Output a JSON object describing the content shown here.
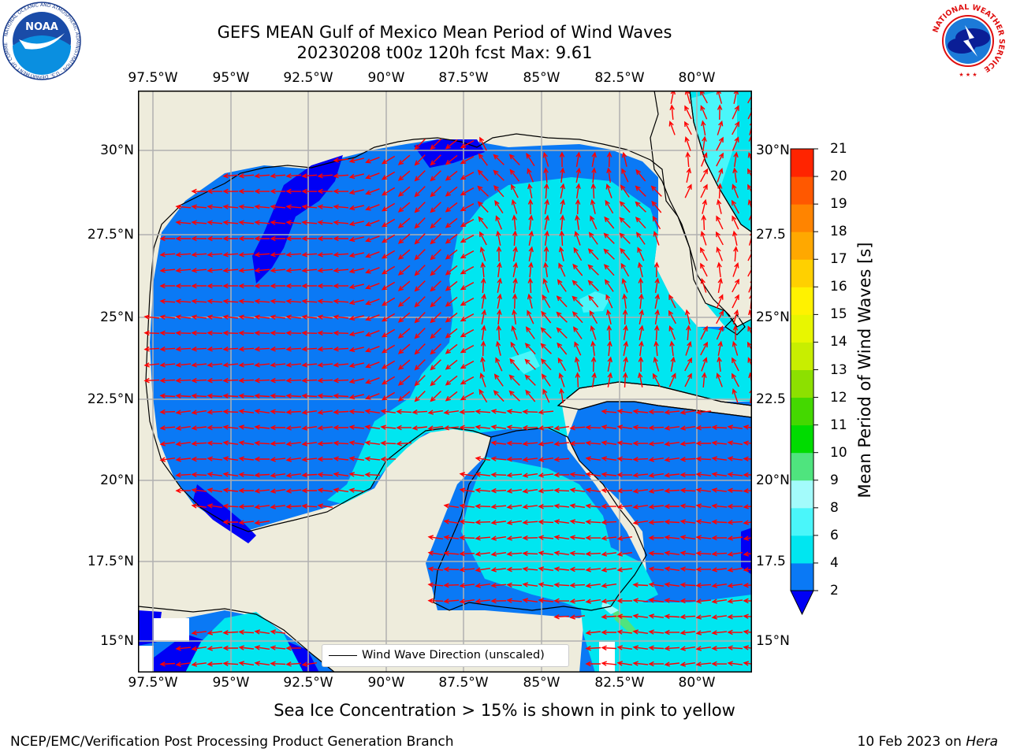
{
  "header": {
    "title_line1": "GEFS MEAN Gulf of Mexico Mean Period of Wind Waves",
    "title_line2": "20230208 t00z 120h fcst   Max: 9.61"
  },
  "logos": {
    "left": "NOAA",
    "left_ring_text": "NATIONAL OCEANIC AND ATMOSPHERIC ADMINISTRATION · U.S. DEPARTMENT OF COMMERCE",
    "right_ring_text": "NATIONAL WEATHER SERVICE"
  },
  "map": {
    "x_tick_labels": [
      "97.5°W",
      "95°W",
      "92.5°W",
      "90°W",
      "87.5°W",
      "85°W",
      "82.5°W",
      "80°W"
    ],
    "y_tick_labels_left": [
      "30°N",
      "27.5°N",
      "25°N",
      "22.5°N",
      "20°N",
      "17.5°N",
      "15°N"
    ],
    "y_tick_labels_right": [
      "30°N",
      "27.5",
      "25°N",
      "22.5",
      "20°N",
      "17.5",
      "15°N"
    ],
    "lon_range": [
      -98,
      -78.2
    ],
    "lat_range": [
      14,
      31.8
    ],
    "land_color": "#eeecdc",
    "vector_color": "#ff0000",
    "legend_label": "Wind Wave Direction (unscaled)"
  },
  "colorbar": {
    "label": "Mean Period of Wind Waves [s]",
    "ticks": [
      "2",
      "4",
      "6",
      "8",
      "9",
      "10",
      "11",
      "12",
      "13",
      "14",
      "15",
      "16",
      "17",
      "18",
      "19",
      "20",
      "21"
    ],
    "colors": [
      "#0a79f5",
      "#00e6f0",
      "#4af6fa",
      "#a3fbfb",
      "#4fe47e",
      "#00dc00",
      "#44d800",
      "#8de000",
      "#c8ee00",
      "#e8f600",
      "#fff200",
      "#ffd000",
      "#ffa800",
      "#ff8400",
      "#ff5800",
      "#ff2400"
    ],
    "under_color": "#0000f5"
  },
  "notes": {
    "sea_ice": "Sea Ice Concentration > 15% is shown in pink to yellow",
    "footer_left": "NCEP/EMC/Verification Post Processing Product Generation Branch",
    "footer_date": "10 Feb 2023 on ",
    "footer_host": "Hera"
  }
}
